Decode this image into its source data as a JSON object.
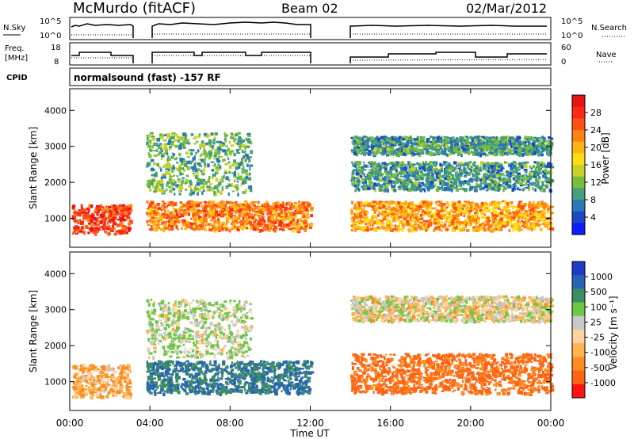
{
  "header": {
    "station": "McMurdo (fitACF)",
    "beam": "Beam 02",
    "date": "02/Mar/2012",
    "mode": "normalsound (fast) -157 RF"
  },
  "aux_panels": {
    "nsky_label": "N.Sky",
    "nsearch_label": "N.Search",
    "nsky_ticks": [
      "10^5",
      "10^0"
    ],
    "nsearch_ticks": [
      "10^5",
      "10^0"
    ],
    "freq_label_1": "Freq.",
    "freq_label_2": "[MHz]",
    "freq_ticks": [
      "18",
      "8"
    ],
    "nave_label": "Nave",
    "nave_ticks": [
      "60",
      "0"
    ],
    "cpid_label": "CPID"
  },
  "colorbars": {
    "power": {
      "label": "Power [dB]",
      "ticks": [
        "28",
        "24",
        "20",
        "16",
        "12",
        "8",
        "4"
      ],
      "colors": [
        "#0a1eff",
        "#1e46c8",
        "#287ab4",
        "#46a07a",
        "#78be3c",
        "#c8d228",
        "#ffdc14",
        "#ffb414",
        "#ff8214",
        "#ff5014",
        "#ff2814",
        "#e61414"
      ]
    },
    "velocity": {
      "label": "Velocity [m s⁻¹]",
      "ticks": [
        "1000",
        "500",
        "100",
        "25",
        "-25",
        "-100",
        "-500",
        "-1000"
      ],
      "colors": [
        "#1e3cc8",
        "#2864b4",
        "#3c8c64",
        "#6ec846",
        "#c8c8c8",
        "#ffd2a0",
        "#ffb450",
        "#ff8c1e",
        "#ff6414",
        "#ff1414"
      ]
    }
  },
  "axes": {
    "xlabel": "Time UT",
    "xticks": [
      "00:00",
      "04:00",
      "08:00",
      "12:00",
      "16:00",
      "20:00",
      "00:00"
    ],
    "ylabel": "Slant Range [km]",
    "yticks": [
      "1000",
      "2000",
      "3000",
      "4000"
    ]
  },
  "chart_data": [
    {
      "type": "heatmap",
      "name": "power",
      "x_range_hours": [
        0,
        24
      ],
      "y_range_km": [
        200,
        4600
      ],
      "data_gaps_hours": [
        [
          3.0,
          3.8
        ],
        [
          12.0,
          14.0
        ]
      ],
      "segments": [
        {
          "x": [
            0.1,
            3.0
          ],
          "range_km": [
            600,
            1400
          ],
          "power_db": 26
        },
        {
          "x": [
            3.8,
            12.0
          ],
          "range_km": [
            700,
            1500
          ],
          "power_db": 22
        },
        {
          "x": [
            3.8,
            9.0
          ],
          "range_km": [
            1700,
            3400
          ],
          "power_db": 10
        },
        {
          "x": [
            14.0,
            24.0
          ],
          "range_km": [
            700,
            1500
          ],
          "power_db": 20
        },
        {
          "x": [
            14.0,
            24.0
          ],
          "range_km": [
            1800,
            2600
          ],
          "power_db": 8
        },
        {
          "x": [
            14.0,
            24.0
          ],
          "range_km": [
            2800,
            3300
          ],
          "power_db": 8
        }
      ]
    },
    {
      "type": "heatmap",
      "name": "velocity",
      "x_range_hours": [
        0,
        24
      ],
      "y_range_km": [
        200,
        4600
      ],
      "data_gaps_hours": [
        [
          3.0,
          3.8
        ],
        [
          12.0,
          14.0
        ]
      ],
      "segments": [
        {
          "x": [
            0.1,
            3.0
          ],
          "range_km": [
            600,
            1500
          ],
          "velocity": -100
        },
        {
          "x": [
            3.8,
            12.0
          ],
          "range_km": [
            700,
            1600
          ],
          "velocity": 500
        },
        {
          "x": [
            3.8,
            9.0
          ],
          "range_km": [
            1700,
            3300
          ],
          "velocity": 100
        },
        {
          "x": [
            14.0,
            24.0
          ],
          "range_km": [
            700,
            1800
          ],
          "velocity": -300
        },
        {
          "x": [
            14.0,
            24.0
          ],
          "range_km": [
            2700,
            3400
          ],
          "velocity": 25
        }
      ]
    }
  ]
}
